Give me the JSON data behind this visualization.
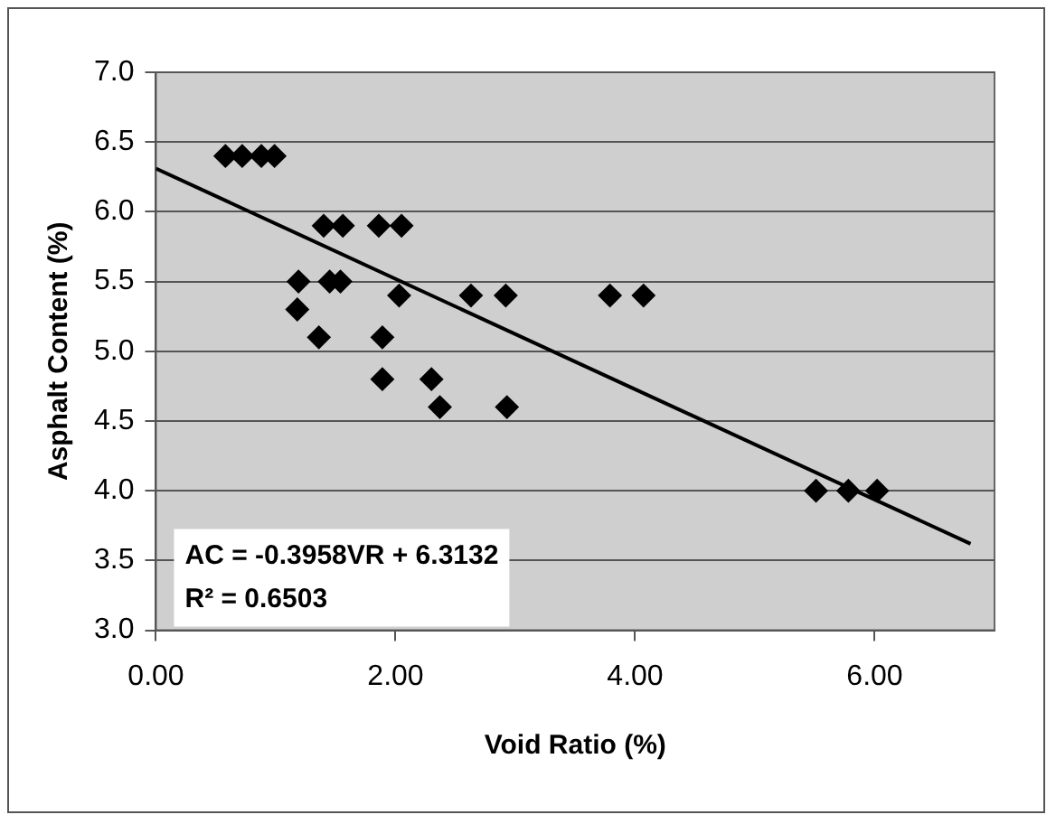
{
  "chart_data": {
    "type": "scatter",
    "xlabel": "Void Ratio (%)",
    "ylabel": "Asphalt Content (%)",
    "xlim": [
      0,
      7
    ],
    "xticks": [
      {
        "value": 0,
        "label": "0.00"
      },
      {
        "value": 2,
        "label": "2.00"
      },
      {
        "value": 4,
        "label": "4.00"
      },
      {
        "value": 6,
        "label": "6.00"
      }
    ],
    "ylim": [
      3,
      7
    ],
    "yticks": [
      {
        "value": 3,
        "label": "3.0"
      },
      {
        "value": 3.5,
        "label": "3.5"
      },
      {
        "value": 4,
        "label": "4.0"
      },
      {
        "value": 4.5,
        "label": "4.5"
      },
      {
        "value": 5,
        "label": "5.0"
      },
      {
        "value": 5.5,
        "label": "5.5"
      },
      {
        "value": 6,
        "label": "6.0"
      },
      {
        "value": 6.5,
        "label": "6.5"
      },
      {
        "value": 7,
        "label": "7.0"
      }
    ],
    "grid": "y",
    "legend": false,
    "marker": "diamond",
    "series": [
      {
        "color": "#000000",
        "x": [
          0.58,
          0.72,
          0.88,
          0.99,
          1.4,
          1.56,
          1.86,
          2.05,
          1.19,
          1.45,
          1.54,
          1.18,
          1.36,
          2.03,
          1.89,
          1.89,
          2.3,
          2.37,
          2.63,
          2.92,
          2.93,
          3.79,
          4.07,
          5.51,
          5.78,
          6.02
        ],
        "values": [
          6.4,
          6.4,
          6.4,
          6.4,
          5.9,
          5.9,
          5.9,
          5.9,
          5.5,
          5.5,
          5.5,
          5.3,
          5.1,
          5.4,
          5.1,
          4.8,
          4.8,
          4.6,
          5.4,
          5.4,
          4.6,
          5.4,
          5.4,
          4.0,
          4.0,
          4.0
        ]
      },
      {
        "type": "line",
        "color": "#000000",
        "marker": "none",
        "x": [
          0,
          6.8
        ],
        "values": [
          6.31,
          3.62
        ]
      }
    ],
    "annotations": [
      "AC = -0.3958VR + 6.3132",
      "R² = 0.6503"
    ]
  }
}
